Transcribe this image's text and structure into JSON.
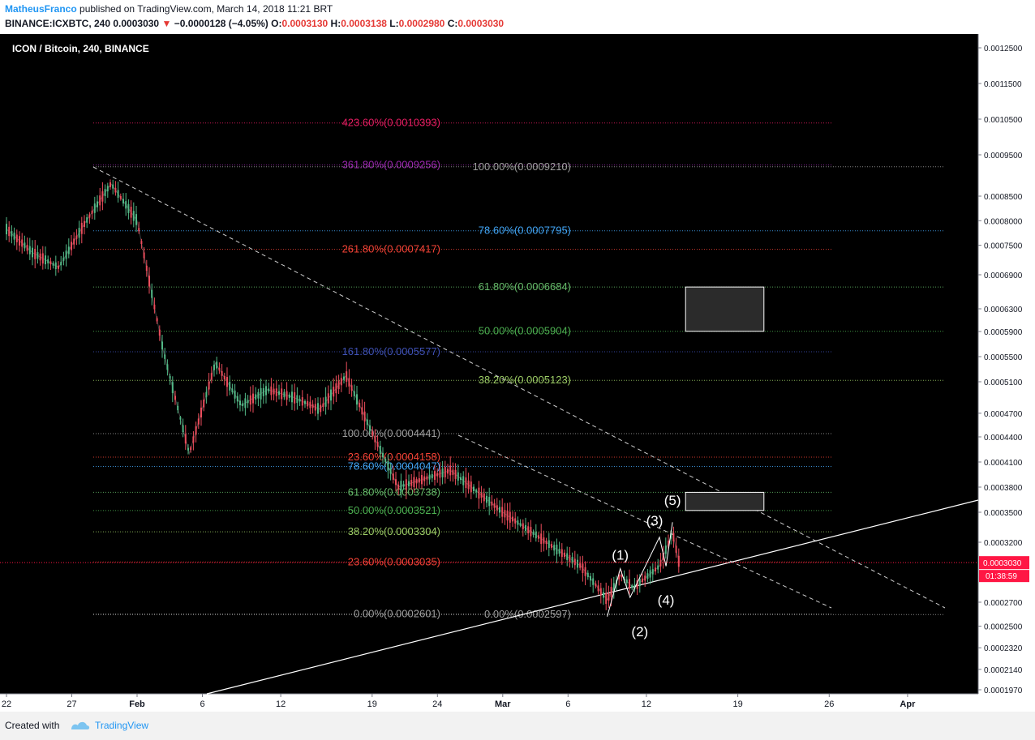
{
  "header": {
    "author": "MatheusFranco",
    "published_text": "published on TradingView.com, March 14, 2018 11:21 BRT",
    "symbol": "BINANCE:ICXBTC, 240",
    "price": "0.0003030",
    "change": "−0.0000128 (−4.05%)",
    "ohlc": [
      {
        "label": "O:",
        "value": "0.0003130"
      },
      {
        "label": "H:",
        "value": "0.0003138"
      },
      {
        "label": "L:",
        "value": "0.0002980"
      },
      {
        "label": "C:",
        "value": "0.0003030"
      }
    ]
  },
  "footer": {
    "created_with": "Created with",
    "brand": "TradingView"
  },
  "colors": {
    "background": "#000000",
    "up": "#53b987",
    "down": "#eb4d5c",
    "price_tag": "#ff1744"
  },
  "chart_data": {
    "type": "line",
    "title": "ICON / Bitcoin, 240, BINANCE",
    "y_ticks": [
      "0.0012500",
      "0.0011500",
      "0.0010500",
      "0.0009500",
      "0.0008500",
      "0.0008000",
      "0.0007500",
      "0.0006900",
      "0.0006300",
      "0.0005900",
      "0.0005500",
      "0.0005100",
      "0.0004700",
      "0.0004400",
      "0.0004100",
      "0.0003800",
      "0.0003500",
      "0.0003200",
      "0.0002700",
      "0.0002500",
      "0.0002320",
      "0.0002140",
      "0.0001970"
    ],
    "x_ticks": [
      "22",
      "27",
      "Feb",
      "6",
      "12",
      "19",
      "24",
      "Mar",
      "6",
      "12",
      "19",
      "26",
      "Apr"
    ],
    "last_price": "0.0003030",
    "countdown": "01:38:59",
    "price_path": [
      [
        "2018-01-22",
        0.000783
      ],
      [
        "2018-01-24",
        0.000735
      ],
      [
        "2018-01-26",
        0.000705
      ],
      [
        "2018-01-28",
        0.000795
      ],
      [
        "2018-01-30",
        0.00088
      ],
      [
        "2018-02-01",
        0.0008
      ],
      [
        "2018-02-03",
        0.00056
      ],
      [
        "2018-02-05",
        0.00042
      ],
      [
        "2018-02-07",
        0.00054
      ],
      [
        "2018-02-09",
        0.00048
      ],
      [
        "2018-02-11",
        0.0005
      ],
      [
        "2018-02-13",
        0.00049
      ],
      [
        "2018-02-15",
        0.000475
      ],
      [
        "2018-02-17",
        0.00052
      ],
      [
        "2018-02-19",
        0.000445
      ],
      [
        "2018-02-21",
        0.00038
      ],
      [
        "2018-02-23",
        0.00039
      ],
      [
        "2018-02-25",
        0.0004
      ],
      [
        "2018-02-27",
        0.000375
      ],
      [
        "2018-03-01",
        0.00035
      ],
      [
        "2018-03-03",
        0.000332
      ],
      [
        "2018-03-05",
        0.000315
      ],
      [
        "2018-03-07",
        0.0003
      ],
      [
        "2018-03-09",
        0.000272
      ],
      [
        "2018-03-10",
        0.000293
      ],
      [
        "2018-03-11",
        0.000282
      ],
      [
        "2018-03-13",
        0.0003
      ],
      [
        "2018-03-14",
        0.00033
      ],
      [
        "2018-03-14T12:00",
        0.000303
      ]
    ],
    "fib_upper": {
      "color_note": "extension from 0.0002601 low",
      "levels": [
        {
          "label": "423.60%(0.0010393)",
          "value": 0.0010393,
          "color": "#e91e63"
        },
        {
          "label": "361.80%(0.0009256)",
          "value": 0.0009256,
          "color": "#9c27b0"
        },
        {
          "label": "261.80%(0.0007417)",
          "value": 0.0007417,
          "color": "#f44336"
        },
        {
          "label": "161.80%(0.0005577)",
          "value": 0.0005577,
          "color": "#3f51b5"
        },
        {
          "label": "23.60%(0.0004158)",
          "value": 0.0004158,
          "color": "#f44336"
        }
      ]
    },
    "fib_right": [
      {
        "label": "100.00%(0.0009210)",
        "value": 0.000921,
        "color": "#9e9e9e"
      },
      {
        "label": "78.60%(0.0007795)",
        "value": 0.0007795,
        "color": "#42a5f5"
      },
      {
        "label": "61.80%(0.0006684)",
        "value": 0.0006684,
        "color": "#66bb6a"
      },
      {
        "label": "50.00%(0.0005904)",
        "value": 0.0005904,
        "color": "#4caf50"
      },
      {
        "label": "38.20%(0.0005123)",
        "value": 0.0005123,
        "color": "#9ccc65"
      },
      {
        "label": "0.00%(0.0002597)",
        "value": 0.0002597,
        "color": "#9e9e9e"
      }
    ],
    "fib_left": [
      {
        "label": "100.00%(0.0004441)",
        "value": 0.0004441,
        "color": "#9e9e9e"
      },
      {
        "label": "78.60%(0.0004047)",
        "value": 0.0004047,
        "color": "#42a5f5"
      },
      {
        "label": "61.80%(0.0003738)",
        "value": 0.0003738,
        "color": "#66bb6a"
      },
      {
        "label": "50.00%(0.0003521)",
        "value": 0.0003521,
        "color": "#4caf50"
      },
      {
        "label": "38.20%(0.0003304)",
        "value": 0.0003304,
        "color": "#9ccc65"
      },
      {
        "label": "23.60%(0.0003035)",
        "value": 0.0003035,
        "color": "#f44336"
      },
      {
        "label": "0.00%(0.0002601)",
        "value": 0.0002601,
        "color": "#9e9e9e"
      }
    ],
    "wave_labels": [
      {
        "label": "(1)",
        "date": "2018-03-10",
        "value": 0.0003
      },
      {
        "label": "(2)",
        "date": "2018-03-11",
        "value": 0.000262
      },
      {
        "label": "(3)",
        "date": "2018-03-13",
        "value": 0.000329
      },
      {
        "label": "(4)",
        "date": "2018-03-13T12:00",
        "value": 0.000287
      },
      {
        "label": "(5)",
        "date": "2018-03-14",
        "value": 0.000346
      }
    ],
    "wave_path": [
      [
        "2018-03-09",
        0.000258
      ],
      [
        "2018-03-10",
        0.000298
      ],
      [
        "2018-03-10T18:00",
        0.000274
      ],
      [
        "2018-03-13",
        0.000325
      ],
      [
        "2018-03-13T12:00",
        0.0003
      ],
      [
        "2018-03-14",
        0.00034
      ]
    ],
    "target_boxes": [
      {
        "from": "2018-03-15",
        "to": "2018-03-21",
        "low": 0.0005904,
        "high": 0.0006684
      },
      {
        "from": "2018-03-15",
        "to": "2018-03-21",
        "low": 0.0003521,
        "high": 0.0003738
      }
    ]
  }
}
